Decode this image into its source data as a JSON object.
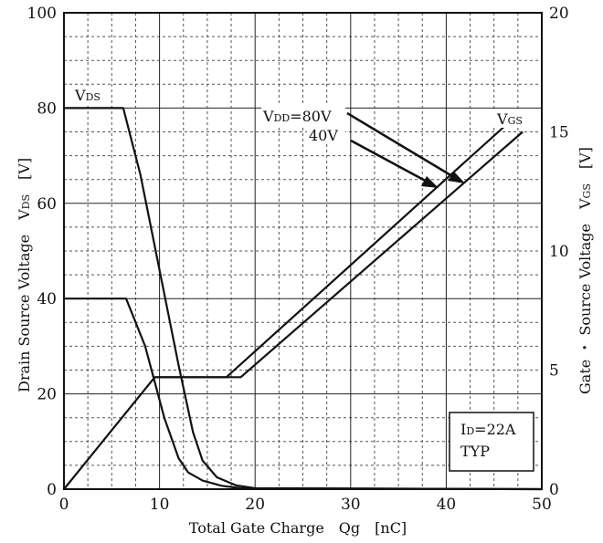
{
  "chart_data": {
    "type": "line",
    "title": "",
    "xlabel": "Total Gate Charge　Qg　[nC]",
    "ylabel_left": {
      "main": "Drain Source Voltage　V",
      "sub": "DS",
      "unit": "　[V]"
    },
    "ylabel_right": {
      "main": "Gate ・ Source Voltage　V",
      "sub": "GS",
      "unit": "　[V]"
    },
    "xlim": [
      0,
      50
    ],
    "ylim_left": [
      0,
      100
    ],
    "ylim_right": [
      0,
      20
    ],
    "x_ticks": [
      "0",
      "10",
      "20",
      "30",
      "40",
      "50"
    ],
    "y_left_ticks": [
      "0",
      "20",
      "40",
      "60",
      "80",
      "100"
    ],
    "y_right_ticks": [
      "0",
      "5",
      "10",
      "15",
      "20"
    ],
    "grid": true,
    "series": [
      {
        "name": "VDS (VDD=80V)",
        "axis": "left",
        "x": [
          0,
          6.2,
          8,
          10,
          12,
          13.5,
          14.5,
          16,
          18,
          20,
          50
        ],
        "y": [
          80,
          80,
          66,
          46,
          26,
          12,
          6,
          2.5,
          0.8,
          0.2,
          0
        ]
      },
      {
        "name": "VDS (VDD=40V)",
        "axis": "left",
        "x": [
          0,
          6.5,
          8.5,
          10.5,
          12,
          13,
          14.5,
          16.5,
          18.5,
          50
        ],
        "y": [
          40,
          40,
          30,
          15,
          6.5,
          3.5,
          1.8,
          0.7,
          0.2,
          0
        ]
      },
      {
        "name": "VGS (VDD=40V)",
        "axis": "right",
        "x": [
          0,
          9.5,
          17,
          46
        ],
        "y": [
          0,
          4.7,
          4.7,
          15.2
        ]
      },
      {
        "name": "VGS (VDD=80V)",
        "axis": "right",
        "x": [
          9.5,
          18.5,
          48
        ],
        "y": [
          4.7,
          4.7,
          15.0
        ]
      }
    ],
    "annotations": {
      "vds_label": {
        "main": "V",
        "sub": "DS"
      },
      "vgs_label": {
        "main": "V",
        "sub": "GS"
      },
      "vdd80": {
        "pre": "V",
        "sub": "DD",
        "post": "=80V"
      },
      "vdd40": "40V",
      "id_box": {
        "pre": "I",
        "sub": "D",
        "post": "=22A",
        "line2": "TYP"
      }
    }
  }
}
